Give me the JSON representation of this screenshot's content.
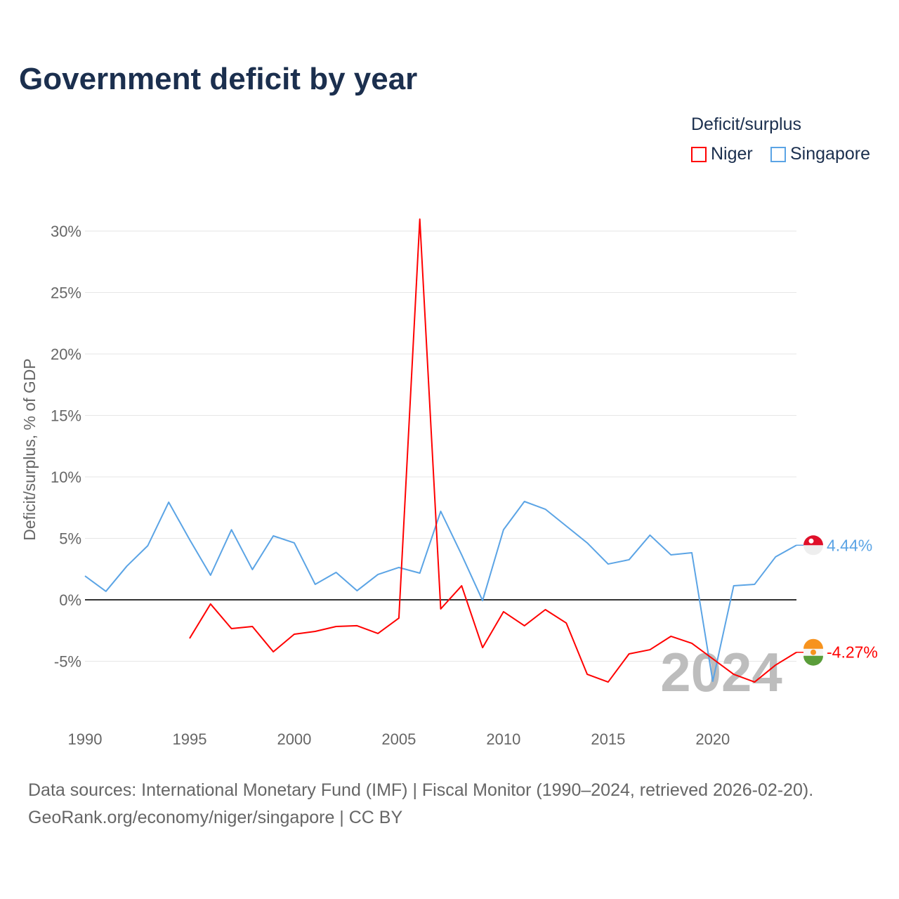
{
  "title": "Government deficit by year",
  "legend": {
    "title": "Deficit/surplus",
    "items": [
      {
        "name": "Niger",
        "color": "#ff0000"
      },
      {
        "name": "Singapore",
        "color": "#5ba4e5"
      }
    ]
  },
  "watermark_year": "2024",
  "footer": {
    "line1": "Data sources: International Monetary Fund (IMF) | Fiscal Monitor (1990–2024, retrieved 2026-02-20).",
    "line2": "GeoRank.org/economy/niger/singapore | CC BY"
  },
  "chart_data": {
    "type": "line",
    "title": "Government deficit by year",
    "xlabel": "",
    "ylabel": "Deficit/surplus, % of GDP",
    "xlim": [
      1990,
      2024
    ],
    "ylim": [
      -9,
      31
    ],
    "x_ticks": [
      1990,
      1995,
      2000,
      2005,
      2010,
      2015,
      2020
    ],
    "y_ticks": [
      30,
      25,
      20,
      15,
      10,
      5,
      0,
      -5
    ],
    "y_tick_labels": [
      "30%",
      "25%",
      "20%",
      "15%",
      "10%",
      "5%",
      "0%",
      "-5%"
    ],
    "grid": true,
    "legend_position": "top-right",
    "series": [
      {
        "name": "Singapore",
        "color": "#5ba4e5",
        "end_label": "4.44%",
        "x": [
          1990,
          1991,
          1992,
          1993,
          1994,
          1995,
          1996,
          1997,
          1998,
          1999,
          2000,
          2001,
          2002,
          2003,
          2004,
          2005,
          2006,
          2007,
          2008,
          2009,
          2010,
          2011,
          2012,
          2013,
          2014,
          2015,
          2016,
          2017,
          2018,
          2019,
          2020,
          2021,
          2022,
          2023,
          2024
        ],
        "values": [
          1.94,
          0.69,
          2.74,
          4.4,
          7.94,
          4.9,
          2.0,
          5.7,
          2.46,
          5.2,
          4.63,
          1.26,
          2.23,
          0.74,
          2.06,
          2.63,
          2.17,
          7.2,
          3.66,
          -0.06,
          5.7,
          8.0,
          7.37,
          6.0,
          4.63,
          2.91,
          3.26,
          5.26,
          3.66,
          3.83,
          -6.63,
          1.14,
          1.26,
          3.49,
          4.44
        ]
      },
      {
        "name": "Niger",
        "color": "#ff0000",
        "end_label": "-4.27%",
        "x": [
          1995,
          1996,
          1997,
          1998,
          1999,
          2000,
          2001,
          2002,
          2003,
          2004,
          2005,
          2006,
          2007,
          2008,
          2009,
          2010,
          2011,
          2012,
          2013,
          2014,
          2015,
          2016,
          2017,
          2018,
          2019,
          2020,
          2021,
          2022,
          2023,
          2024
        ],
        "values": [
          -3.14,
          -0.34,
          -2.34,
          -2.17,
          -4.23,
          -2.8,
          -2.57,
          -2.17,
          -2.11,
          -2.74,
          -1.49,
          30.97,
          -0.74,
          1.14,
          -3.89,
          -0.97,
          -2.11,
          -0.8,
          -1.89,
          -6.06,
          -6.69,
          -4.4,
          -4.06,
          -2.97,
          -3.54,
          -4.8,
          -6.06,
          -6.69,
          -5.31,
          -4.27
        ]
      }
    ]
  }
}
